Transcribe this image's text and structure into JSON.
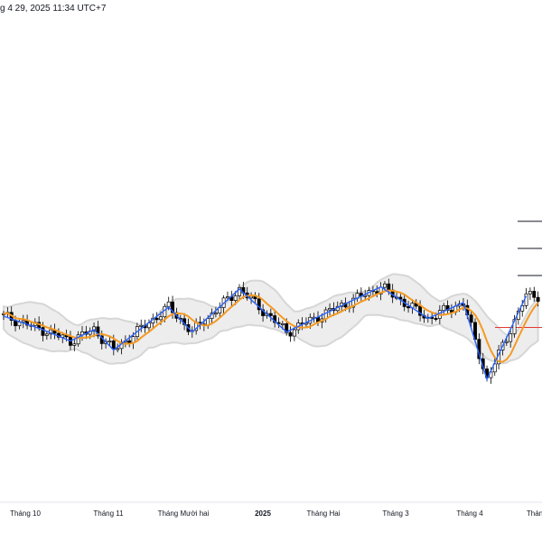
{
  "header": {
    "timestamp": "g 4 29, 2025 11:34 UTC+7"
  },
  "colors": {
    "zigzag": "#2962ff",
    "ma": "#f59a23",
    "band": "#d6d6d6",
    "candle_up": "#ffffff",
    "candle_down": "#000000",
    "level_line": "#131722",
    "red_line": "#e53935"
  },
  "chart_data": {
    "type": "candlestick",
    "x_axis_labels": [
      {
        "label": "Tháng 10",
        "bold": false
      },
      {
        "label": "Tháng 11",
        "bold": false
      },
      {
        "label": "Tháng Mười hai",
        "bold": false
      },
      {
        "label": "2025",
        "bold": true
      },
      {
        "label": "Tháng Hai",
        "bold": false
      },
      {
        "label": "Tháng 3",
        "bold": false
      },
      {
        "label": "Tháng 4",
        "bold": false
      },
      {
        "label": "Thán",
        "bold": false
      }
    ],
    "zigzag_pivots": [
      {
        "i": 0,
        "v": 108
      },
      {
        "i": 10,
        "v": 102
      },
      {
        "i": 17,
        "v": 97
      },
      {
        "i": 23,
        "v": 102
      },
      {
        "i": 28,
        "v": 93
      },
      {
        "i": 42,
        "v": 112
      },
      {
        "i": 48,
        "v": 101
      },
      {
        "i": 60,
        "v": 120
      },
      {
        "i": 72,
        "v": 101
      },
      {
        "i": 96,
        "v": 121
      },
      {
        "i": 108,
        "v": 107
      },
      {
        "i": 117,
        "v": 114
      },
      {
        "i": 123,
        "v": 80
      },
      {
        "i": 133,
        "v": 117
      }
    ],
    "levels": [
      {
        "v": 150,
        "color": "dark"
      },
      {
        "v": 138,
        "color": "dark"
      },
      {
        "v": 126,
        "color": "dark"
      },
      {
        "v": 103,
        "color": "red"
      }
    ],
    "y_range": [
      40,
      200
    ],
    "bars": 137
  }
}
